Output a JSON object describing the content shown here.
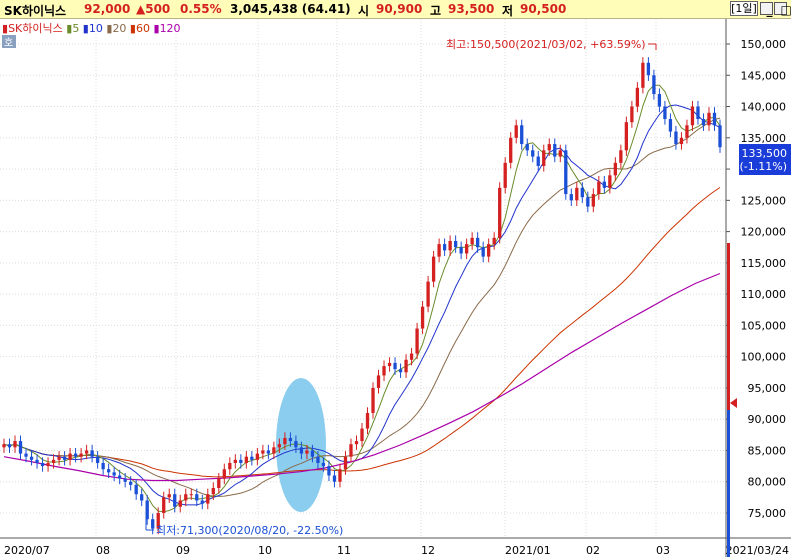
{
  "header": {
    "stock_name": "SK하이닉스",
    "price": "92,000",
    "change": "▲500",
    "change_pct": "0.55%",
    "volume_info": "3,045,438 (64.41)",
    "open_label": "시",
    "open": "90,900",
    "high_label": "고",
    "high": "93,500",
    "low_label": "저",
    "low": "90,500",
    "period_button": "[1일]"
  },
  "legend": {
    "tag": "호",
    "items": [
      {
        "label": "SK하이닉스",
        "color": "#d42020"
      },
      {
        "label": "5",
        "color": "#6a8c2a"
      },
      {
        "label": "10",
        "color": "#2233cc"
      },
      {
        "label": "20",
        "color": "#8a6a4a"
      },
      {
        "label": "60",
        "color": "#cc3300"
      },
      {
        "label": "120",
        "color": "#aa00aa"
      }
    ]
  },
  "colors": {
    "up": "#d42020",
    "down": "#1a4fd6",
    "highlight": "#7ec8ec",
    "price_tag_bg": "#1a3cd8",
    "ma5": "#6a8c2a",
    "ma10": "#2233cc",
    "ma20": "#8a6a4a",
    "ma60": "#cc3300",
    "ma120": "#aa00aa"
  },
  "chart_data": {
    "type": "candlestick",
    "x_ticks": [
      "2020/07",
      "08",
      "09",
      "10",
      "11",
      "12",
      "2021/01",
      "02",
      "03",
      "2021/03/24"
    ],
    "y_ticks": [
      "150,000",
      "145,000",
      "140,000",
      "135,000",
      "130,000",
      "125,000",
      "120,000",
      "115,000",
      "110,000",
      "105,000",
      "100,000",
      "95,000",
      "90,000",
      "85,000",
      "80,000",
      "75,000"
    ],
    "ylim": [
      71000,
      154000
    ],
    "current_price_label": "133,500",
    "current_change_label": "(-1.11%)",
    "max_annotation": "최고:150,500(2021/03/02, +63.59%)",
    "min_annotation": "최저:71,300(2020/08/20, -22.50%)",
    "closes": [
      86000,
      85500,
      86500,
      84500,
      84000,
      83500,
      83000,
      82500,
      83000,
      83500,
      84000,
      83500,
      84500,
      84000,
      84500,
      85000,
      84000,
      83000,
      82000,
      81500,
      81000,
      80500,
      80000,
      79500,
      78000,
      77000,
      74000,
      72500,
      75000,
      77500,
      78000,
      76000,
      77000,
      78000,
      78000,
      77000,
      76500,
      78000,
      79000,
      80500,
      82000,
      83000,
      83500,
      83000,
      84000,
      83500,
      84500,
      85000,
      84500,
      85500,
      86000,
      87000,
      86500,
      85500,
      84500,
      85000,
      84000,
      83000,
      82500,
      81000,
      80000,
      82000,
      84000,
      86000,
      86500,
      88500,
      91000,
      95000,
      97000,
      98500,
      99000,
      98000,
      97500,
      99500,
      100500,
      104500,
      108000,
      112000,
      116000,
      118000,
      117000,
      118500,
      117500,
      116500,
      118000,
      119000,
      117500,
      116000,
      118000,
      119000,
      127000,
      131000,
      135000,
      137000,
      134000,
      133000,
      132000,
      130500,
      133000,
      134000,
      132000,
      133000,
      126000,
      125000,
      127000,
      125500,
      124000,
      126000,
      128000,
      127000,
      129000,
      131000,
      133000,
      137500,
      140000,
      143000,
      147000,
      145000,
      142000,
      140000,
      138000,
      136000,
      134000,
      135000,
      137000,
      140000,
      138000,
      137000,
      139000,
      137000,
      133500
    ],
    "ma120": [
      84000,
      83300,
      82500,
      81800,
      81000,
      80400,
      80200,
      80200,
      80400,
      80600,
      80900,
      81200,
      81600,
      82200,
      83100,
      84300,
      85800,
      87500,
      89300,
      91200,
      93400,
      95700,
      98200,
      100700,
      103000,
      105300,
      107500,
      109700,
      111700,
      113300
    ]
  }
}
